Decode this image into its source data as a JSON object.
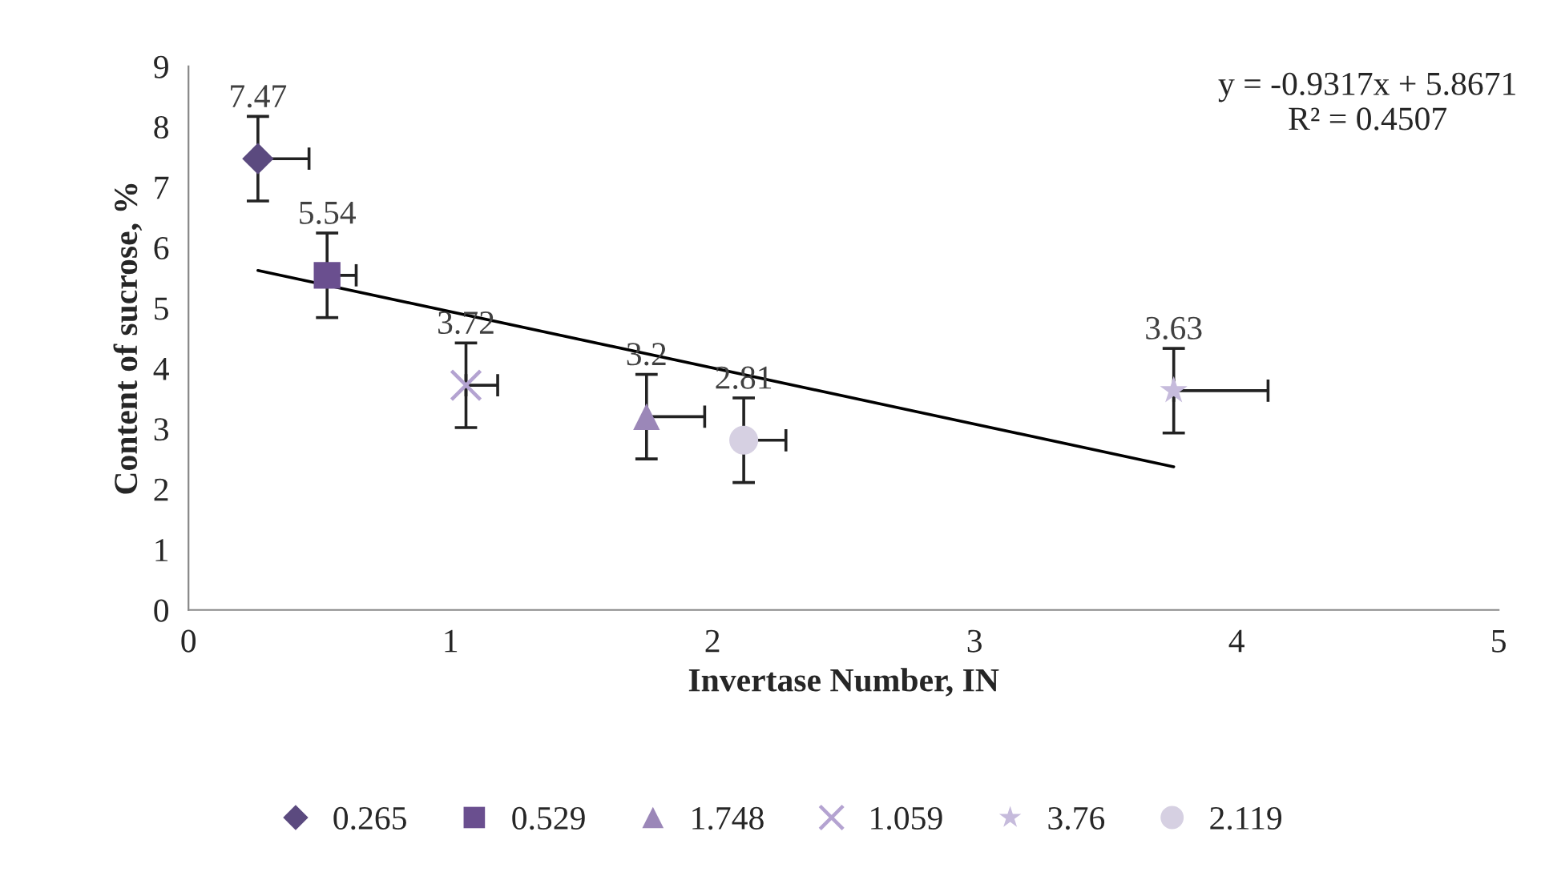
{
  "chart_data": {
    "type": "scatter",
    "xlabel": "Invertase Number, IN",
    "ylabel": "Content of sucrose, %",
    "xlim": [
      0,
      5
    ],
    "ylim": [
      0,
      9
    ],
    "xticks": [
      0,
      1,
      2,
      3,
      4,
      5
    ],
    "yticks": [
      0,
      1,
      2,
      3,
      4,
      5,
      6,
      7,
      8,
      9
    ],
    "grid": false,
    "legend": "bottom",
    "annotations": [
      "y = -0.9317x + 5.8671\nR² = 0.4507"
    ],
    "series": [
      {
        "name": "0.265",
        "color": "#5b4a7f",
        "marker": "diamond",
        "x": [
          0.265
        ],
        "values": [
          7.47
        ],
        "value_labels": [
          "7.47"
        ],
        "errors": [
          0.7
        ],
        "xerrors": [
          [
            0.265,
            0.46
          ]
        ]
      },
      {
        "name": "0.529",
        "color": "#6a4f8f",
        "marker": "square",
        "x": [
          0.529
        ],
        "values": [
          5.54
        ],
        "value_labels": [
          "5.54"
        ],
        "errors": [
          0.7
        ],
        "xerrors": [
          [
            0.529,
            0.64
          ]
        ]
      },
      {
        "name": "1.748",
        "color": "#9b87b8",
        "marker": "triangle",
        "x": [
          1.748
        ],
        "values": [
          3.2
        ],
        "value_labels": [
          "3.2"
        ],
        "errors": [
          0.7
        ],
        "xerrors": [
          [
            1.748,
            1.97
          ]
        ]
      },
      {
        "name": "1.059",
        "color": "#b4a3d1",
        "marker": "cross",
        "x": [
          1.059
        ],
        "values": [
          3.72
        ],
        "value_labels": [
          "3.72"
        ],
        "errors": [
          0.7
        ],
        "xerrors": [
          [
            1.059,
            1.18
          ]
        ]
      },
      {
        "name": "3.76",
        "color": "#c6bbdc",
        "marker": "star",
        "x": [
          3.76
        ],
        "values": [
          3.63
        ],
        "value_labels": [
          "3.63"
        ],
        "errors": [
          0.7
        ],
        "xerrors": [
          [
            3.76,
            4.12
          ]
        ]
      },
      {
        "name": "2.119",
        "color": "#d6d0e2",
        "marker": "circle",
        "x": [
          2.119
        ],
        "values": [
          2.81
        ],
        "value_labels": [
          "2.81"
        ],
        "errors": [
          0.7
        ],
        "xerrors": [
          [
            2.119,
            2.28
          ]
        ]
      },
      {
        "type": "line",
        "color": "#000000",
        "x": [
          0.265,
          3.76
        ],
        "values": [
          5.62,
          2.37
        ]
      }
    ]
  }
}
